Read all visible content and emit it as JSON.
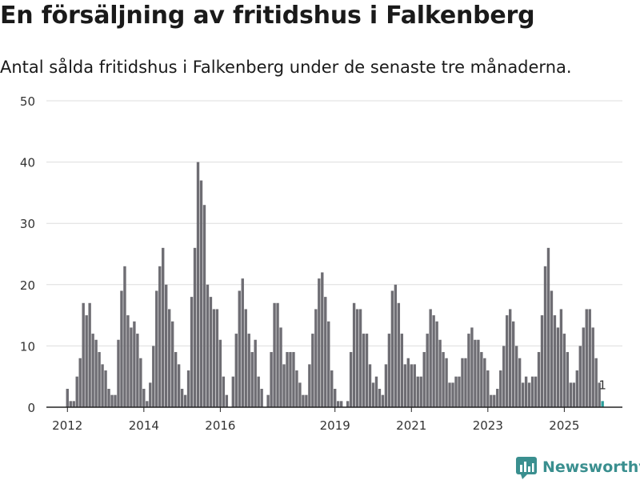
{
  "title": "En försäljning av fritidshus i Falkenberg",
  "subtitle": "Antal sålda fritidshus i Falkenberg under de senaste tre månaderna.",
  "brand": {
    "name": "Newsworthy",
    "color": "#3a8f8f"
  },
  "colors": {
    "bar": "#6e6d73",
    "highlight": "#2a9d9a",
    "grid": "#dddddd",
    "axis": "#222222",
    "text": "#333333"
  },
  "chart_data": {
    "type": "bar",
    "title": "En försäljning av fritidshus i Falkenberg",
    "xlabel": "",
    "ylabel": "",
    "ylim": [
      0,
      50
    ],
    "yticks": [
      "0",
      "10",
      "20",
      "30",
      "40",
      "50"
    ],
    "xlim": [
      2011.45,
      2026.52
    ],
    "xticks": [
      {
        "label": "2012",
        "value": 2012
      },
      {
        "label": "2014",
        "value": 2014
      },
      {
        "label": "2016",
        "value": 2016
      },
      {
        "label": "2019",
        "value": 2019
      },
      {
        "label": "2021",
        "value": 2021
      },
      {
        "label": "2023",
        "value": 2023
      },
      {
        "label": "2025",
        "value": 2025
      }
    ],
    "start": 2012.0,
    "step": 0.0833333,
    "values": [
      3,
      1,
      1,
      5,
      8,
      17,
      15,
      17,
      12,
      11,
      9,
      7,
      6,
      3,
      2,
      2,
      11,
      19,
      23,
      15,
      13,
      14,
      12,
      8,
      3,
      1,
      4,
      10,
      19,
      23,
      26,
      20,
      16,
      14,
      9,
      7,
      3,
      2,
      6,
      18,
      26,
      40,
      37,
      33,
      20,
      18,
      16,
      16,
      11,
      5,
      2,
      0,
      5,
      12,
      19,
      21,
      16,
      12,
      9,
      11,
      5,
      3,
      0,
      2,
      9,
      17,
      17,
      13,
      7,
      9,
      9,
      9,
      6,
      4,
      2,
      2,
      7,
      12,
      16,
      21,
      22,
      18,
      14,
      6,
      3,
      1,
      1,
      0,
      1,
      9,
      17,
      16,
      16,
      12,
      12,
      7,
      4,
      5,
      3,
      2,
      7,
      12,
      19,
      20,
      17,
      12,
      7,
      8,
      7,
      7,
      5,
      5,
      9,
      12,
      16,
      15,
      14,
      11,
      9,
      8,
      4,
      4,
      5,
      5,
      8,
      8,
      12,
      13,
      11,
      11,
      9,
      8,
      6,
      2,
      2,
      3,
      6,
      10,
      15,
      16,
      14,
      10,
      8,
      4,
      5,
      4,
      5,
      5,
      9,
      15,
      23,
      26,
      19,
      15,
      13,
      16,
      12,
      9,
      4,
      4,
      6,
      10,
      13,
      16,
      16,
      13,
      8,
      4,
      1
    ],
    "highlight_last": true,
    "annotation": {
      "text": "1",
      "target": "last"
    }
  }
}
